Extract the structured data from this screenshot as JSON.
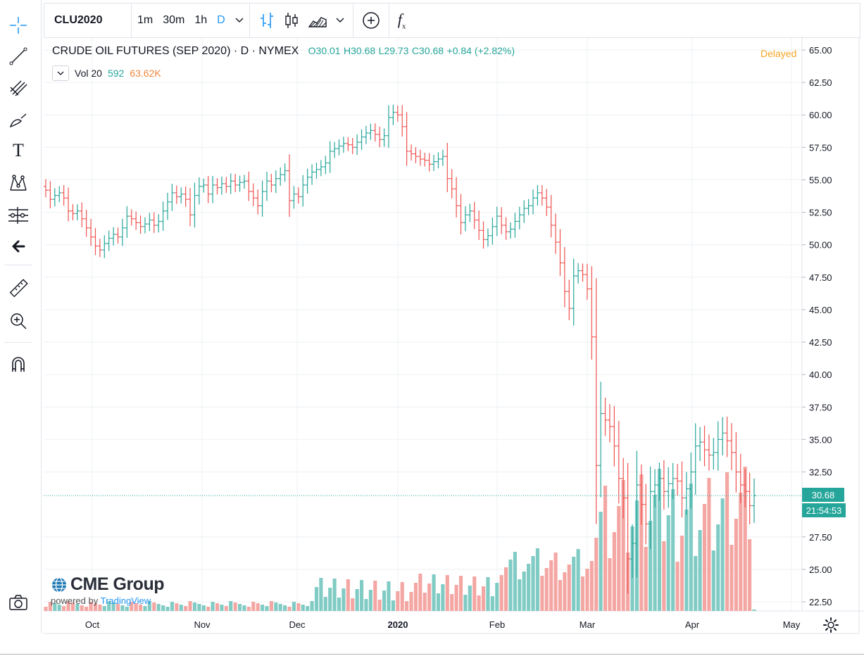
{
  "toolbar": {
    "tools": [
      "crosshair-icon",
      "trend-line-icon",
      "fib-icon",
      "brush-icon",
      "text-icon",
      "pattern-icon",
      "forecast-icon",
      "back-arrow-icon",
      "ruler-icon",
      "zoom-in-icon",
      "magnet-icon",
      "camera-icon"
    ],
    "text_tool_glyph": "T"
  },
  "topbar": {
    "symbol": "CLU2020",
    "intervals": [
      "1m",
      "30m",
      "1h",
      "D"
    ],
    "active_interval": "D",
    "fx_label": "f"
  },
  "legend": {
    "title": "CRUDE OIL FUTURES (SEP 2020) · D · NYMEX",
    "open": "O30.01",
    "high": "H30.68",
    "low": "L29.73",
    "close": "C30.68",
    "change": "+0.84 (+2.82%)",
    "vol_label": "Vol 20",
    "vol_value": "592",
    "vol_ma": "63.62K",
    "delayed": "Delayed"
  },
  "branding": {
    "logo": "CME Group",
    "powered_by": "powered by",
    "powered_link": "TradingView"
  },
  "badges": {
    "last_price": "30.68",
    "countdown": "21:54:53"
  },
  "colors": {
    "up": "#26a69a",
    "down": "#ef5350",
    "vol_up": "#80cbc4",
    "vol_down": "#f4a6a3",
    "grid": "#eef0f3",
    "accent": "#2196f3",
    "delayed": "#f5a623"
  },
  "chart_data": {
    "type": "ohlc",
    "title": "CRUDE OIL FUTURES (SEP 2020) · D · NYMEX",
    "y_ticks": [
      "65.00",
      "62.50",
      "60.00",
      "57.50",
      "55.00",
      "52.50",
      "50.00",
      "47.50",
      "45.00",
      "42.50",
      "40.00",
      "37.50",
      "35.00",
      "32.50",
      "27.50",
      "25.00",
      "22.50"
    ],
    "x_ticks": [
      "Oct",
      "Nov",
      "Dec",
      "2020",
      "Feb",
      "Mar",
      "Apr",
      "May"
    ],
    "ylim": [
      21.9,
      65.5
    ],
    "last_price": 30.68,
    "closes": [
      54.2,
      53.5,
      53.8,
      54.0,
      53.6,
      52.6,
      52.4,
      52.6,
      52.0,
      51.3,
      50.6,
      49.9,
      49.6,
      50.1,
      50.5,
      50.8,
      50.6,
      51.3,
      52.2,
      52.0,
      51.7,
      51.4,
      51.6,
      51.9,
      51.5,
      51.8,
      52.6,
      53.3,
      54.0,
      53.7,
      53.9,
      53.5,
      52.3,
      53.8,
      54.5,
      54.6,
      53.9,
      54.6,
      54.4,
      54.7,
      54.5,
      54.9,
      54.6,
      54.8,
      54.9,
      54.1,
      53.6,
      53.0,
      54.1,
      54.9,
      54.6,
      55.1,
      55.4,
      55.7,
      53.4,
      53.9,
      53.7,
      54.6,
      55.2,
      55.6,
      55.8,
      56.0,
      56.3,
      57.2,
      57.4,
      57.6,
      57.8,
      57.7,
      57.5,
      57.9,
      58.3,
      58.6,
      58.8,
      58.5,
      58.1,
      58.4,
      59.8,
      60.2,
      60.0,
      59.1,
      57.2,
      57.0,
      56.8,
      56.6,
      56.5,
      56.2,
      56.4,
      56.6,
      56.8,
      55.1,
      54.3,
      53.0,
      51.7,
      52.3,
      52.6,
      51.9,
      51.1,
      50.4,
      50.7,
      51.4,
      52.2,
      51.5,
      51.0,
      51.2,
      51.8,
      52.3,
      52.8,
      53.0,
      53.6,
      54.0,
      53.6,
      52.9,
      51.5,
      50.2,
      48.6,
      46.4,
      45.1,
      47.6,
      48.0,
      47.7,
      46.6,
      42.9,
      33.0,
      37.0,
      36.5,
      36.0,
      34.5,
      32.0,
      30.5,
      25.8,
      27.0,
      31.5,
      30.0,
      28.5,
      31.0,
      31.5,
      32.0,
      31.0,
      31.6,
      32.0,
      31.8,
      30.5,
      31.2,
      32.5,
      34.5,
      34.8,
      34.2,
      33.8,
      34.0,
      35.0,
      35.5,
      34.9,
      34.0,
      32.5,
      31.5,
      31.0,
      29.9,
      30.68
    ]
  }
}
